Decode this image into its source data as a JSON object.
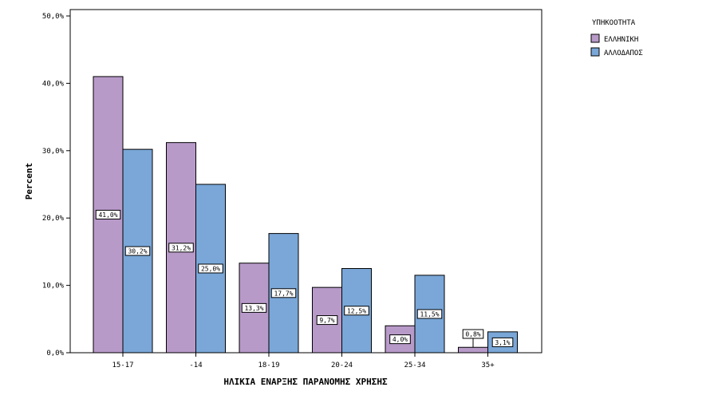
{
  "chart_data": {
    "type": "bar",
    "title": "",
    "xlabel": "ΗΛΙΚΙΑ ΕΝΑΡΞΗΣ ΠΑΡΑΝΟΜΗΣ ΧΡΗΣΗΣ",
    "ylabel": "Percent",
    "categories": [
      "15-17",
      "-14",
      "18-19",
      "20-24",
      "25-34",
      "35+"
    ],
    "ylim": [
      0,
      50
    ],
    "yticks": [
      0,
      10,
      20,
      30,
      40,
      50
    ],
    "ytick_labels": [
      "0,0%",
      "10,0%",
      "20,0%",
      "30,0%",
      "40,0%",
      "50,0%"
    ],
    "legend": {
      "title": "ΥΠΗΚΟΟΤΗΤΑ",
      "position": "right"
    },
    "grid": false,
    "series": [
      {
        "name": "ΕΛΛΗΝΙΚΗ",
        "color": "#b89ac9",
        "values": [
          41.0,
          31.2,
          13.3,
          9.7,
          4.0,
          0.8
        ],
        "labels": [
          "41,0%",
          "31,2%",
          "13,3%",
          "9,7%",
          "4,0%",
          "0,8%"
        ]
      },
      {
        "name": "ΑΛΛΟΔΑΠΟΣ",
        "color": "#7aa7d8",
        "values": [
          30.2,
          25.0,
          17.7,
          12.5,
          11.5,
          3.1
        ],
        "labels": [
          "30,2%",
          "25,0%",
          "17,7%",
          "12,5%",
          "11,5%",
          "3,1%"
        ]
      }
    ]
  }
}
